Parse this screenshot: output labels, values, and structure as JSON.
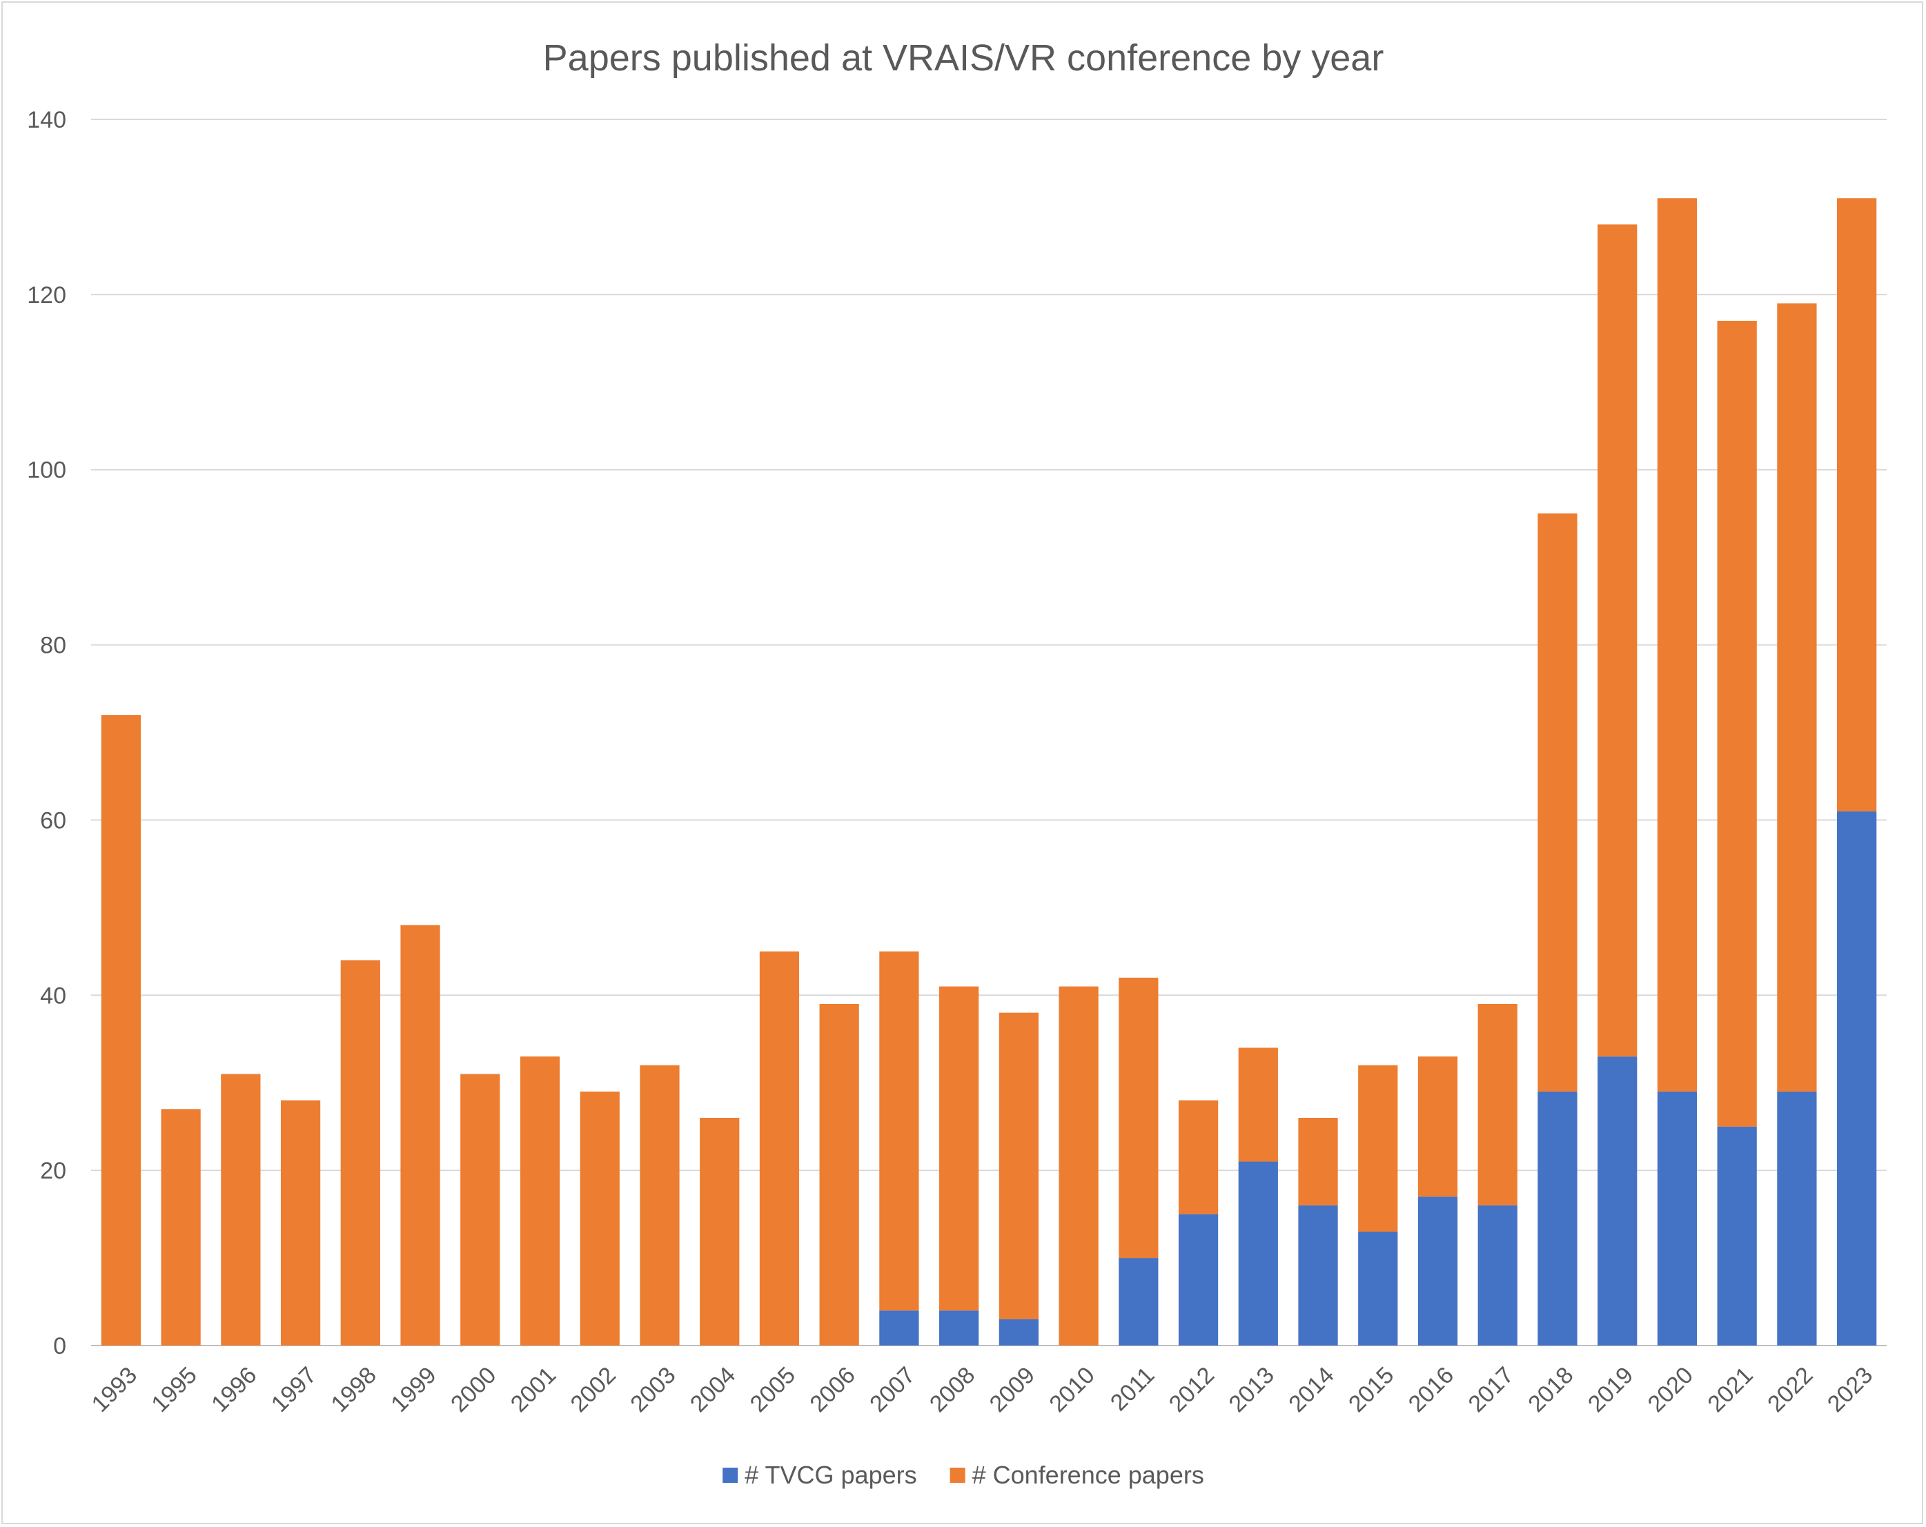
{
  "chart_data": {
    "type": "bar",
    "stacked": true,
    "title": "Papers published at VRAIS/VR conference by year",
    "xlabel": "",
    "ylabel": "",
    "ylim": [
      0,
      140
    ],
    "yticks": [
      0,
      20,
      40,
      60,
      80,
      100,
      120,
      140
    ],
    "grid": true,
    "legend_position": "bottom",
    "categories": [
      "1993",
      "1995",
      "1996",
      "1997",
      "1998",
      "1999",
      "2000",
      "2001",
      "2002",
      "2003",
      "2004",
      "2005",
      "2006",
      "2007",
      "2008",
      "2009",
      "2010",
      "2011",
      "2012",
      "2013",
      "2014",
      "2015",
      "2016",
      "2017",
      "2018",
      "2019",
      "2020",
      "2021",
      "2022",
      "2023"
    ],
    "series": [
      {
        "name": "# TVCG papers",
        "color": "#4472c4",
        "values": [
          0,
          0,
          0,
          0,
          0,
          0,
          0,
          0,
          0,
          0,
          0,
          0,
          0,
          4,
          4,
          3,
          0,
          10,
          15,
          21,
          16,
          13,
          17,
          16,
          29,
          33,
          29,
          25,
          29,
          61
        ]
      },
      {
        "name": "# Conference papers",
        "color": "#ed7d31",
        "values": [
          72,
          27,
          31,
          28,
          44,
          48,
          31,
          33,
          29,
          32,
          26,
          45,
          39,
          41,
          37,
          35,
          41,
          32,
          13,
          13,
          10,
          19,
          16,
          23,
          66,
          95,
          102,
          92,
          90,
          70
        ]
      }
    ]
  }
}
